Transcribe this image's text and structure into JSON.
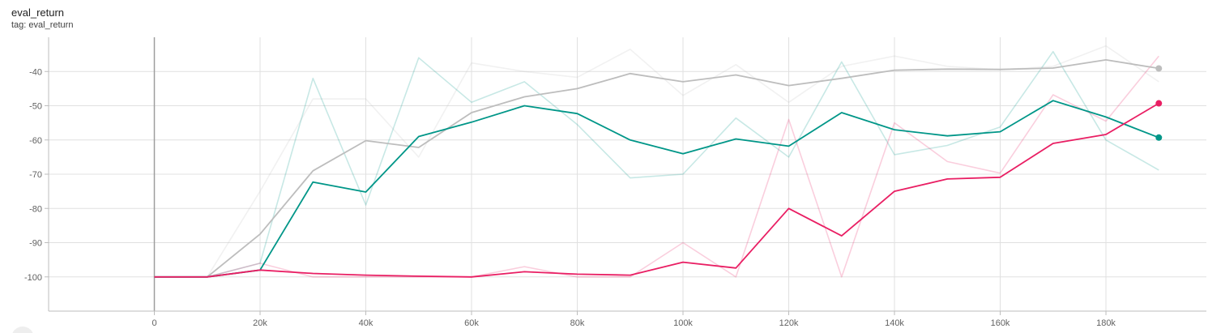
{
  "card": {
    "title": "eval_return",
    "subtitle": "tag: eval_return"
  },
  "chart_data": {
    "type": "line",
    "title": "eval_return",
    "subtitle": "tag: eval_return",
    "xlabel": "",
    "ylabel": "",
    "xlim": [
      -20000,
      199000
    ],
    "ylim": [
      -110,
      -30
    ],
    "x_ticks": [
      0,
      20000,
      40000,
      60000,
      80000,
      100000,
      120000,
      140000,
      160000,
      180000
    ],
    "x_tick_labels": [
      "0",
      "20k",
      "40k",
      "60k",
      "80k",
      "100k",
      "120k",
      "140k",
      "160k",
      "180k"
    ],
    "y_ticks": [
      -100,
      -90,
      -80,
      -70,
      -60,
      -50,
      -40
    ],
    "y_tick_labels": [
      "-100",
      "-90",
      "-80",
      "-70",
      "-60",
      "-50",
      "-40"
    ],
    "grid": true,
    "legend": "none",
    "x": [
      0,
      10000,
      20000,
      30000,
      40000,
      50000,
      60000,
      70000,
      80000,
      90000,
      100000,
      110000,
      120000,
      130000,
      140000,
      150000,
      160000,
      170000,
      180000,
      190000
    ],
    "series": [
      {
        "color": "#bdbdbd",
        "smoothed": [
          -100,
          -100,
          -87.5,
          -69,
          -60.2,
          -62.2,
          -52,
          -47.4,
          -45,
          -40.6,
          -43,
          -41,
          -44.1,
          -42,
          -39.6,
          -39.3,
          -39.4,
          -39,
          -36.6,
          -39.1
        ],
        "raw": [
          -100,
          -100,
          -75,
          -48,
          -48,
          -65,
          -37.5,
          -40,
          -41.7,
          -33.5,
          -47,
          -38,
          -49,
          -38.5,
          -35.5,
          -38.5,
          -39.5,
          -38.5,
          -32.5,
          -43
        ],
        "end_marker": true
      },
      {
        "color": "#009688",
        "smoothed": [
          -100,
          -100,
          -98,
          -72.3,
          -75.2,
          -59,
          -54.8,
          -50,
          -52.3,
          -60,
          -64,
          -59.7,
          -61.8,
          -52,
          -57,
          -58.8,
          -57.6,
          -48.5,
          -53.3,
          -59.3
        ],
        "raw": [
          -100,
          -100,
          -96,
          -42,
          -79,
          -36,
          -49,
          -43,
          -55.5,
          -71.1,
          -70,
          -53.6,
          -65,
          -37.2,
          -64.3,
          -61.6,
          -56.2,
          -34.2,
          -60,
          -68.8
        ],
        "end_marker": true
      },
      {
        "color": "#e91e63",
        "smoothed": [
          -100,
          -100,
          -98,
          -99,
          -99.5,
          -99.8,
          -100,
          -98.5,
          -99.2,
          -99.5,
          -95.7,
          -97.4,
          -80,
          -88,
          -75,
          -71.4,
          -70.9,
          -61,
          -58.4,
          -49.3
        ],
        "raw": [
          -100,
          -100,
          -96,
          -100,
          -100,
          -100,
          -100,
          -97,
          -100,
          -100,
          -90,
          -100,
          -54,
          -100,
          -55,
          -66.3,
          -69.7,
          -46.8,
          -54.5,
          -35.5
        ],
        "end_marker": true
      }
    ]
  }
}
